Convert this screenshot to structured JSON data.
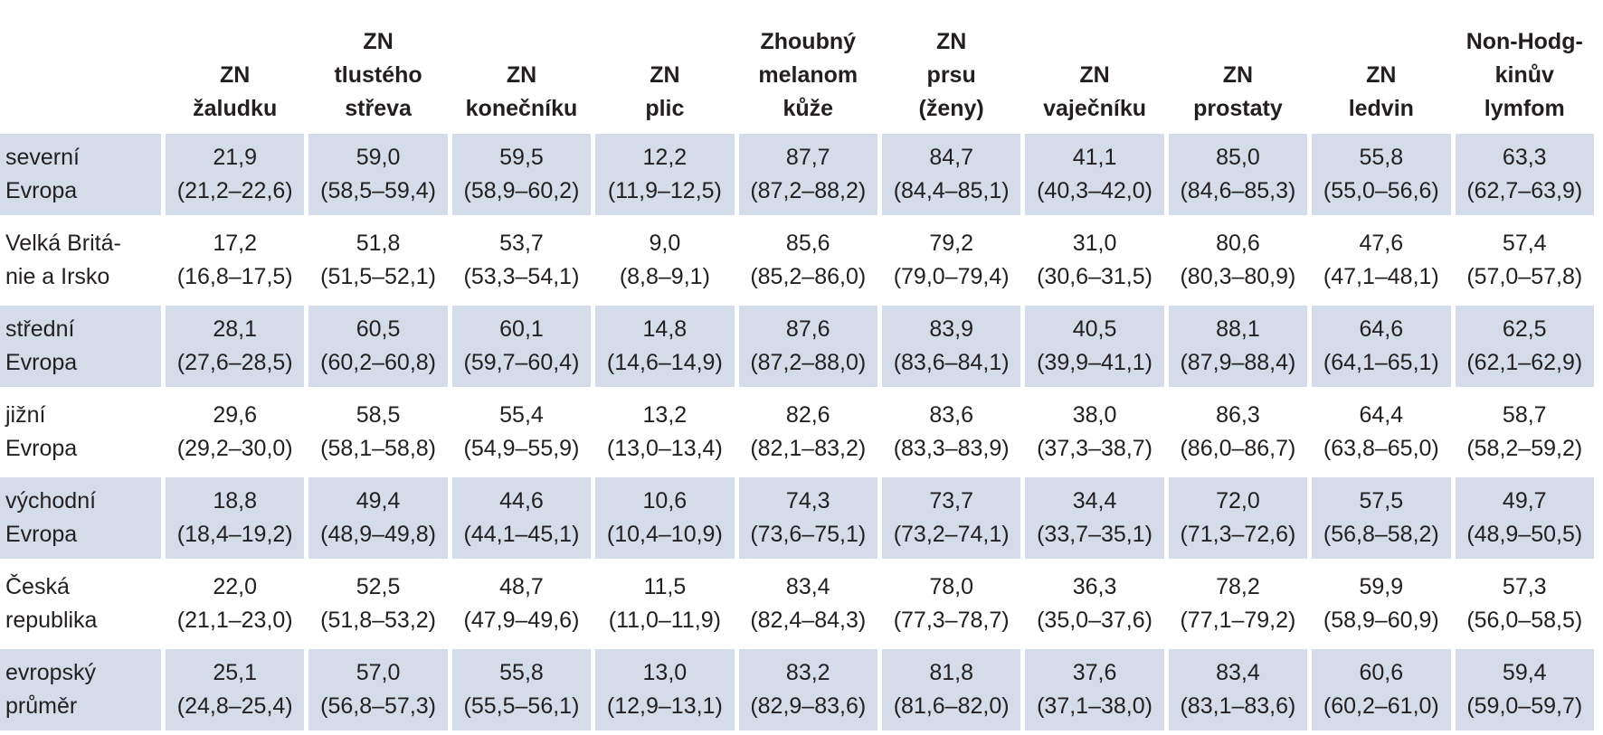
{
  "table": {
    "columns": [
      [
        "ZN",
        "žaludku"
      ],
      [
        "ZN",
        "tlustého",
        "střeva"
      ],
      [
        "ZN",
        "konečníku"
      ],
      [
        "ZN",
        "plic"
      ],
      [
        "Zhoubný",
        "melanom",
        "kůže"
      ],
      [
        "ZN",
        "prsu",
        "(ženy)"
      ],
      [
        "ZN",
        "vaječníku"
      ],
      [
        "ZN",
        "prostaty"
      ],
      [
        "ZN",
        "ledvin"
      ],
      [
        "Non-Hodg-",
        "kinův",
        "lymfom"
      ]
    ],
    "rows": [
      {
        "label": [
          "severní",
          "Evropa"
        ],
        "cells": [
          [
            "21,9",
            "(21,2–22,6)"
          ],
          [
            "59,0",
            "(58,5–59,4)"
          ],
          [
            "59,5",
            "(58,9–60,2)"
          ],
          [
            "12,2",
            "(11,9–12,5)"
          ],
          [
            "87,7",
            "(87,2–88,2)"
          ],
          [
            "84,7",
            "(84,4–85,1)"
          ],
          [
            "41,1",
            "(40,3–42,0)"
          ],
          [
            "85,0",
            "(84,6–85,3)"
          ],
          [
            "55,8",
            "(55,0–56,6)"
          ],
          [
            "63,3",
            "(62,7–63,9)"
          ]
        ]
      },
      {
        "label": [
          "Velká Britá-",
          "nie a Irsko"
        ],
        "cells": [
          [
            "17,2",
            "(16,8–17,5)"
          ],
          [
            "51,8",
            "(51,5–52,1)"
          ],
          [
            "53,7",
            "(53,3–54,1)"
          ],
          [
            "9,0",
            "(8,8–9,1)"
          ],
          [
            "85,6",
            "(85,2–86,0)"
          ],
          [
            "79,2",
            "(79,0–79,4)"
          ],
          [
            "31,0",
            "(30,6–31,5)"
          ],
          [
            "80,6",
            "(80,3–80,9)"
          ],
          [
            "47,6",
            "(47,1–48,1)"
          ],
          [
            "57,4",
            "(57,0–57,8)"
          ]
        ]
      },
      {
        "label": [
          "střední",
          "Evropa"
        ],
        "cells": [
          [
            "28,1",
            "(27,6–28,5)"
          ],
          [
            "60,5",
            "(60,2–60,8)"
          ],
          [
            "60,1",
            "(59,7–60,4)"
          ],
          [
            "14,8",
            "(14,6–14,9)"
          ],
          [
            "87,6",
            "(87,2–88,0)"
          ],
          [
            "83,9",
            "(83,6–84,1)"
          ],
          [
            "40,5",
            "(39,9–41,1)"
          ],
          [
            "88,1",
            "(87,9–88,4)"
          ],
          [
            "64,6",
            "(64,1–65,1)"
          ],
          [
            "62,5",
            "(62,1–62,9)"
          ]
        ]
      },
      {
        "label": [
          "jižní",
          "Evropa"
        ],
        "cells": [
          [
            "29,6",
            "(29,2–30,0)"
          ],
          [
            "58,5",
            "(58,1–58,8)"
          ],
          [
            "55,4",
            "(54,9–55,9)"
          ],
          [
            "13,2",
            "(13,0–13,4)"
          ],
          [
            "82,6",
            "(82,1–83,2)"
          ],
          [
            "83,6",
            "(83,3–83,9)"
          ],
          [
            "38,0",
            "(37,3–38,7)"
          ],
          [
            "86,3",
            "(86,0–86,7)"
          ],
          [
            "64,4",
            "(63,8–65,0)"
          ],
          [
            "58,7",
            "(58,2–59,2)"
          ]
        ]
      },
      {
        "label": [
          "východní",
          "Evropa"
        ],
        "cells": [
          [
            "18,8",
            "(18,4–19,2)"
          ],
          [
            "49,4",
            "(48,9–49,8)"
          ],
          [
            "44,6",
            "(44,1–45,1)"
          ],
          [
            "10,6",
            "(10,4–10,9)"
          ],
          [
            "74,3",
            "(73,6–75,1)"
          ],
          [
            "73,7",
            "(73,2–74,1)"
          ],
          [
            "34,4",
            "(33,7–35,1)"
          ],
          [
            "72,0",
            "(71,3–72,6)"
          ],
          [
            "57,5",
            "(56,8–58,2)"
          ],
          [
            "49,7",
            "(48,9–50,5)"
          ]
        ]
      },
      {
        "label": [
          "Česká",
          "republika"
        ],
        "cells": [
          [
            "22,0",
            "(21,1–23,0)"
          ],
          [
            "52,5",
            "(51,8–53,2)"
          ],
          [
            "48,7",
            "(47,9–49,6)"
          ],
          [
            "11,5",
            "(11,0–11,9)"
          ],
          [
            "83,4",
            "(82,4–84,3)"
          ],
          [
            "78,0",
            "(77,3–78,7)"
          ],
          [
            "36,3",
            "(35,0–37,6)"
          ],
          [
            "78,2",
            "(77,1–79,2)"
          ],
          [
            "59,9",
            "(58,9–60,9)"
          ],
          [
            "57,3",
            "(56,0–58,5)"
          ]
        ]
      },
      {
        "label": [
          "evropský",
          "průměr"
        ],
        "cells": [
          [
            "25,1",
            "(24,8–25,4)"
          ],
          [
            "57,0",
            "(56,8–57,3)"
          ],
          [
            "55,8",
            "(55,5–56,1)"
          ],
          [
            "13,0",
            "(12,9–13,1)"
          ],
          [
            "83,2",
            "(82,9–83,6)"
          ],
          [
            "81,8",
            "(81,6–82,0)"
          ],
          [
            "37,6",
            "(37,1–38,0)"
          ],
          [
            "83,4",
            "(83,1–83,6)"
          ],
          [
            "60,6",
            "(60,2–61,0)"
          ],
          [
            "59,4",
            "(59,0–59,7)"
          ]
        ]
      }
    ]
  }
}
